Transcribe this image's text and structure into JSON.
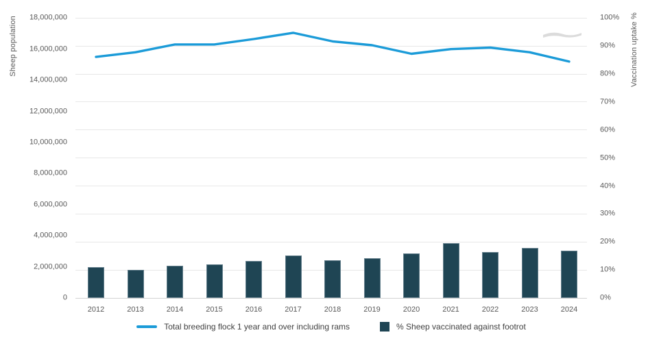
{
  "chart_data": {
    "type": "combo (line + bar, dual axis)",
    "title": "",
    "categories": [
      "2012",
      "2013",
      "2014",
      "2015",
      "2016",
      "2017",
      "2018",
      "2019",
      "2020",
      "2021",
      "2022",
      "2023",
      "2024"
    ],
    "series": [
      {
        "name": "Total breeding flock 1 year and over including rams",
        "type": "line",
        "axis": "left",
        "color": "#1b9bd8",
        "values": [
          15500000,
          15800000,
          16300000,
          16300000,
          16650000,
          17050000,
          16500000,
          16250000,
          15700000,
          16000000,
          16100000,
          15800000,
          15200000
        ]
      },
      {
        "name": "% Sheep vaccinated against footrot",
        "type": "bar",
        "axis": "right",
        "color": "#1f4554",
        "values": [
          11,
          10,
          11.6,
          12,
          13.3,
          15.1,
          13.5,
          14.3,
          15.9,
          19.5,
          16.5,
          18,
          17
        ]
      }
    ],
    "left_axis": {
      "label": "Sheep population",
      "min": 0,
      "max": 18000000,
      "tick_values": [
        18000000,
        16000000,
        14000000,
        12000000,
        10000000,
        8000000,
        6000000,
        4000000,
        2000000,
        0
      ],
      "tick_labels": [
        "18,000,000",
        "16,000,000",
        "14,000,000",
        "12,000,000",
        "10,000,000",
        "8,000,000",
        "6,000,000",
        "4,000,000",
        "2,000,000",
        "0"
      ]
    },
    "right_axis": {
      "label": "Vaccination uptake %",
      "min": 0,
      "max": 100,
      "tick_values": [
        100,
        90,
        80,
        70,
        60,
        50,
        40,
        30,
        20,
        10,
        0
      ],
      "tick_labels": [
        "100%",
        "90%",
        "80%",
        "70%",
        "60%",
        "50%",
        "40%",
        "30%",
        "20%",
        "10%",
        "0%"
      ]
    },
    "grid": "horizontal lines at 10% intervals of right axis",
    "legend_position": "bottom center"
  },
  "watermark": {
    "text": "AHDB",
    "color": "#dbdbdb"
  },
  "ui_colors": {
    "gridline": "#e7e7e7",
    "baseline": "#d2d2d2",
    "tick_text": "#595959",
    "legend_text": "#3f3f3f"
  }
}
